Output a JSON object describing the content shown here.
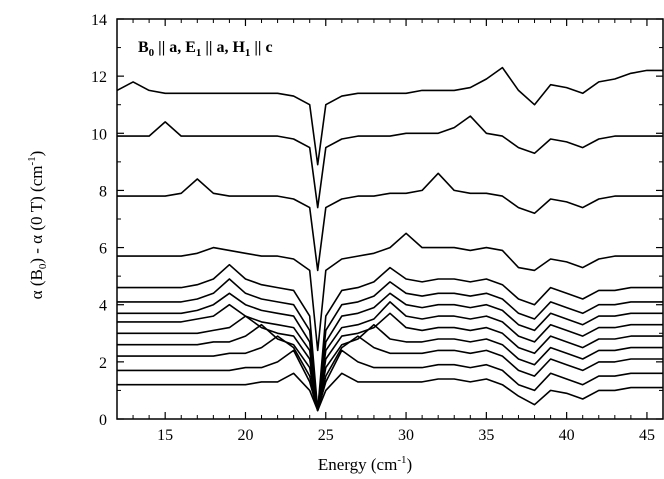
{
  "chart_data": {
    "type": "line",
    "xlabel": "Energy (cm",
    "xlabel_sup": "-1",
    "xlabel_close": ")",
    "ylabel": "α (B",
    "ylabel_sub0": "0",
    "ylabel_mid": ") - α (0 T)  (cm",
    "ylabel_sup": "-1",
    "ylabel_close": ")",
    "annotation": {
      "parts": [
        {
          "t": "B",
          "sub": "0"
        },
        {
          "t": " || a, E",
          "sub": "1"
        },
        {
          "t": " || a, H",
          "sub": "1"
        },
        {
          "t": " || c",
          "sub": ""
        }
      ]
    },
    "xlim": [
      12,
      46
    ],
    "ylim": [
      0,
      14
    ],
    "xticks": [
      15,
      20,
      25,
      30,
      35,
      40,
      45
    ],
    "yticks": [
      0,
      2,
      4,
      6,
      8,
      10,
      12,
      14
    ],
    "grid": false,
    "x": [
      12.0,
      13.0,
      14.0,
      15.0,
      16.0,
      17.0,
      18.0,
      19.0,
      20.0,
      21.0,
      22.0,
      23.0,
      24.0,
      24.5,
      25.0,
      26.0,
      27.0,
      28.0,
      29.0,
      30.0,
      31.0,
      32.0,
      33.0,
      34.0,
      35.0,
      36.0,
      37.0,
      38.0,
      39.0,
      40.0,
      41.0,
      42.0,
      43.0,
      44.0,
      45.0,
      46.0
    ],
    "series": [
      {
        "values": [
          1.2,
          1.2,
          1.2,
          1.2,
          1.2,
          1.2,
          1.2,
          1.2,
          1.2,
          1.3,
          1.3,
          1.6,
          1.0,
          0.3,
          1.0,
          1.6,
          1.3,
          1.3,
          1.3,
          1.3,
          1.3,
          1.4,
          1.4,
          1.3,
          1.4,
          1.2,
          0.8,
          0.5,
          1.0,
          0.9,
          0.7,
          1.0,
          1.0,
          1.1,
          1.1,
          1.1
        ]
      },
      {
        "values": [
          1.7,
          1.7,
          1.7,
          1.7,
          1.7,
          1.7,
          1.7,
          1.7,
          1.8,
          1.8,
          2.0,
          2.4,
          1.3,
          0.3,
          1.3,
          2.4,
          2.0,
          1.8,
          1.8,
          1.8,
          1.8,
          1.9,
          1.9,
          1.8,
          1.9,
          1.7,
          1.2,
          1.0,
          1.6,
          1.4,
          1.2,
          1.5,
          1.5,
          1.6,
          1.6,
          1.6
        ]
      },
      {
        "values": [
          2.2,
          2.2,
          2.2,
          2.2,
          2.2,
          2.2,
          2.2,
          2.3,
          2.3,
          2.5,
          2.9,
          2.5,
          1.5,
          0.3,
          1.5,
          2.5,
          2.9,
          2.5,
          2.3,
          2.3,
          2.3,
          2.4,
          2.4,
          2.3,
          2.4,
          2.2,
          1.7,
          1.5,
          2.1,
          1.9,
          1.7,
          2.0,
          2.0,
          2.1,
          2.1,
          2.1
        ]
      },
      {
        "values": [
          2.6,
          2.6,
          2.6,
          2.6,
          2.6,
          2.6,
          2.7,
          2.7,
          2.9,
          3.3,
          2.8,
          2.6,
          1.8,
          0.3,
          1.8,
          2.6,
          2.8,
          3.3,
          2.8,
          2.7,
          2.7,
          2.8,
          2.8,
          2.7,
          2.8,
          2.6,
          2.1,
          1.9,
          2.5,
          2.3,
          2.1,
          2.4,
          2.4,
          2.5,
          2.5,
          2.5
        ]
      },
      {
        "values": [
          3.0,
          3.0,
          3.0,
          3.0,
          3.0,
          3.0,
          3.1,
          3.2,
          3.6,
          3.2,
          3.0,
          2.9,
          2.1,
          0.3,
          2.1,
          2.9,
          3.0,
          3.2,
          3.7,
          3.2,
          3.1,
          3.2,
          3.2,
          3.1,
          3.2,
          3.0,
          2.5,
          2.3,
          2.9,
          2.7,
          2.5,
          2.8,
          2.8,
          2.9,
          2.9,
          2.9
        ]
      },
      {
        "values": [
          3.4,
          3.4,
          3.4,
          3.4,
          3.4,
          3.5,
          3.6,
          4.0,
          3.6,
          3.4,
          3.3,
          3.2,
          2.4,
          0.3,
          2.4,
          3.2,
          3.3,
          3.5,
          4.1,
          3.6,
          3.5,
          3.6,
          3.6,
          3.5,
          3.6,
          3.4,
          2.9,
          2.7,
          3.3,
          3.1,
          2.9,
          3.2,
          3.2,
          3.3,
          3.3,
          3.3
        ]
      },
      {
        "values": [
          3.7,
          3.7,
          3.7,
          3.7,
          3.7,
          3.8,
          4.0,
          4.4,
          4.0,
          3.8,
          3.7,
          3.6,
          2.7,
          0.3,
          2.7,
          3.6,
          3.7,
          3.9,
          4.4,
          4.0,
          3.9,
          4.0,
          4.0,
          3.9,
          4.0,
          3.8,
          3.3,
          3.1,
          3.7,
          3.5,
          3.3,
          3.6,
          3.6,
          3.7,
          3.7,
          3.7
        ]
      },
      {
        "values": [
          4.1,
          4.1,
          4.1,
          4.1,
          4.1,
          4.2,
          4.4,
          4.9,
          4.4,
          4.2,
          4.1,
          4.0,
          3.1,
          0.3,
          3.1,
          4.0,
          4.1,
          4.3,
          4.8,
          4.4,
          4.3,
          4.4,
          4.4,
          4.3,
          4.4,
          4.2,
          3.7,
          3.5,
          4.1,
          3.9,
          3.7,
          4.0,
          4.0,
          4.1,
          4.1,
          4.1
        ]
      },
      {
        "values": [
          4.6,
          4.6,
          4.6,
          4.6,
          4.6,
          4.7,
          4.9,
          5.4,
          4.9,
          4.7,
          4.6,
          4.5,
          3.6,
          0.3,
          3.6,
          4.5,
          4.6,
          4.8,
          5.3,
          4.9,
          4.8,
          4.9,
          4.9,
          4.8,
          4.9,
          4.7,
          4.2,
          4.0,
          4.6,
          4.4,
          4.2,
          4.5,
          4.5,
          4.6,
          4.6,
          4.6
        ]
      },
      {
        "values": [
          5.7,
          5.7,
          5.7,
          5.7,
          5.7,
          5.8,
          6.0,
          5.9,
          5.8,
          5.7,
          5.7,
          5.6,
          5.2,
          2.4,
          5.2,
          5.6,
          5.7,
          5.8,
          6.0,
          6.5,
          6.0,
          6.0,
          6.0,
          5.9,
          6.0,
          5.9,
          5.3,
          5.2,
          5.6,
          5.5,
          5.3,
          5.6,
          5.7,
          5.7,
          5.7,
          5.7
        ]
      },
      {
        "values": [
          7.8,
          7.8,
          7.8,
          7.8,
          7.9,
          8.4,
          7.9,
          7.8,
          7.8,
          7.8,
          7.8,
          7.7,
          7.4,
          5.2,
          7.4,
          7.7,
          7.8,
          7.8,
          7.9,
          7.9,
          8.0,
          8.6,
          8.0,
          7.9,
          7.9,
          7.8,
          7.4,
          7.2,
          7.7,
          7.6,
          7.4,
          7.7,
          7.8,
          7.8,
          7.8,
          7.8
        ]
      },
      {
        "values": [
          9.9,
          9.9,
          9.9,
          10.4,
          9.9,
          9.9,
          9.9,
          9.9,
          9.9,
          9.9,
          9.9,
          9.8,
          9.5,
          7.4,
          9.5,
          9.8,
          9.9,
          9.9,
          9.9,
          10.0,
          10.0,
          10.0,
          10.2,
          10.6,
          10.0,
          9.9,
          9.5,
          9.3,
          9.8,
          9.7,
          9.5,
          9.8,
          9.9,
          9.9,
          9.9,
          9.9
        ]
      },
      {
        "values": [
          11.5,
          11.8,
          11.5,
          11.4,
          11.4,
          11.4,
          11.4,
          11.4,
          11.4,
          11.4,
          11.4,
          11.3,
          11.0,
          8.9,
          11.0,
          11.3,
          11.4,
          11.4,
          11.4,
          11.4,
          11.5,
          11.5,
          11.5,
          11.6,
          11.9,
          12.3,
          11.5,
          11.0,
          11.7,
          11.6,
          11.4,
          11.8,
          11.9,
          12.1,
          12.2,
          12.2
        ]
      }
    ]
  }
}
